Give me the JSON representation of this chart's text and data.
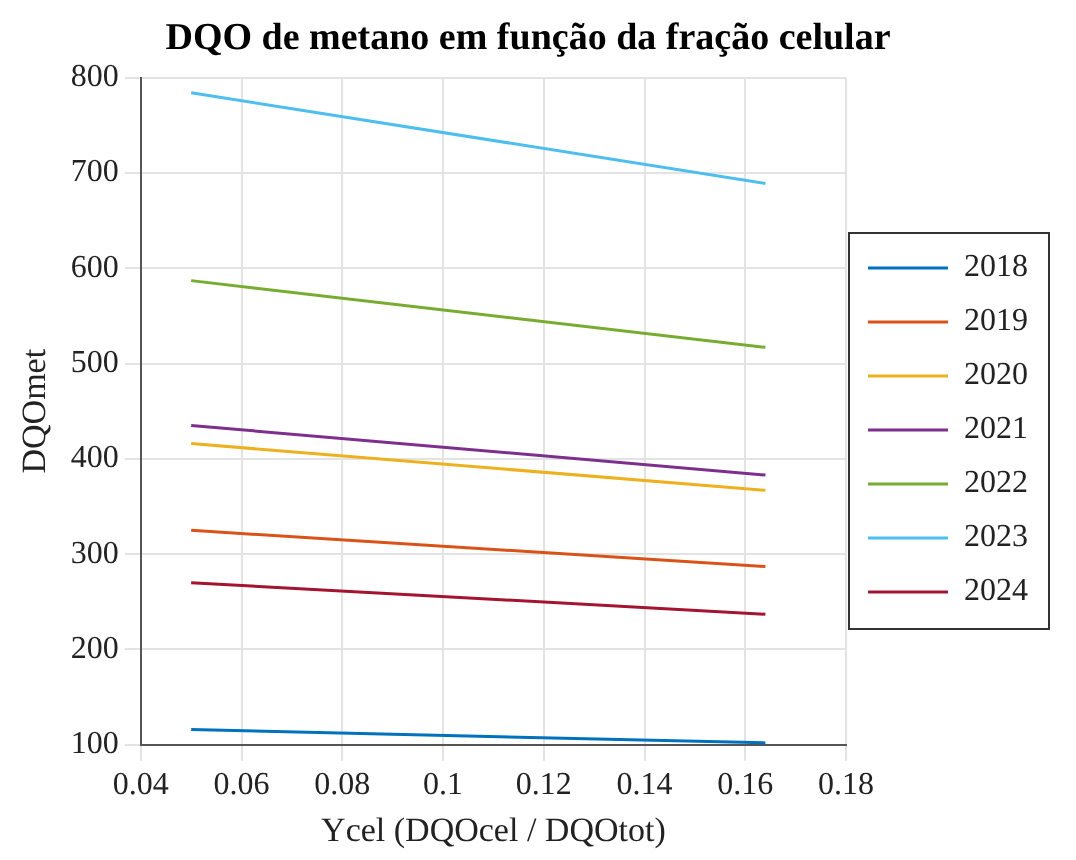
{
  "chart_data": {
    "type": "line",
    "title": "DQO de metano em função da fração celular",
    "xlabel": "Ycel (DQOcel / DQOtot)",
    "ylabel": "DQOmet",
    "x": [
      0.05,
      0.164
    ],
    "series": [
      {
        "name": "2018",
        "color": "#0072bd",
        "values": [
          116,
          102
        ]
      },
      {
        "name": "2019",
        "color": "#d95319",
        "values": [
          325,
          287
        ]
      },
      {
        "name": "2020",
        "color": "#edb120",
        "values": [
          416,
          367
        ]
      },
      {
        "name": "2021",
        "color": "#7e2f8e",
        "values": [
          435,
          383
        ]
      },
      {
        "name": "2022",
        "color": "#77ac30",
        "values": [
          587,
          517
        ]
      },
      {
        "name": "2023",
        "color": "#4dbeee",
        "values": [
          784,
          689
        ]
      },
      {
        "name": "2024",
        "color": "#a2142f",
        "values": [
          270,
          237
        ]
      }
    ],
    "xlim": [
      0.04,
      0.18
    ],
    "xticks": [
      0.04,
      0.06,
      0.08,
      0.1,
      0.12,
      0.14,
      0.16,
      0.18
    ],
    "ylim": [
      100,
      800
    ],
    "yticks": [
      100,
      200,
      300,
      400,
      500,
      600,
      700,
      800
    ],
    "grid": true,
    "legend": "right",
    "marker": "none",
    "line_style": "solid"
  }
}
